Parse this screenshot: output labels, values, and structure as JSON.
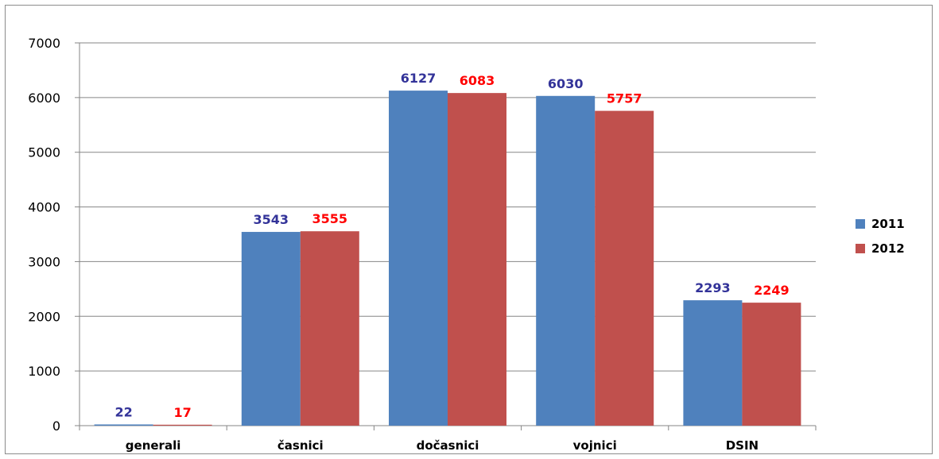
{
  "chart_data": {
    "type": "bar",
    "categories": [
      "generali",
      "časnici",
      "dočasnici",
      "vojnici",
      "DSIN"
    ],
    "series": [
      {
        "name": "2011",
        "values": [
          22,
          3543,
          6127,
          6030,
          2293
        ],
        "color": "#4F81BD",
        "label_color": "#333399"
      },
      {
        "name": "2012",
        "values": [
          17,
          3555,
          6083,
          5757,
          2249
        ],
        "color": "#C0504D",
        "label_color": "#FF0000"
      }
    ],
    "title": "",
    "xlabel": "",
    "ylabel": "",
    "ylim": [
      0,
      7000
    ],
    "yticks": [
      0,
      1000,
      2000,
      3000,
      4000,
      5000,
      6000,
      7000
    ],
    "grid": true,
    "legend_position": "right",
    "data_labels": true
  }
}
